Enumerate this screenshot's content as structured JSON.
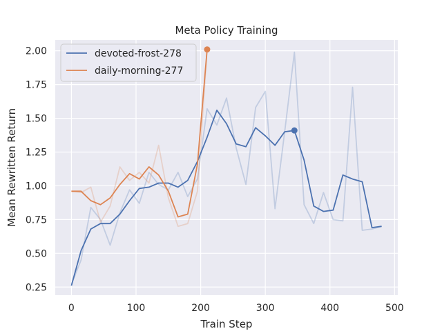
{
  "chart_data": {
    "type": "line",
    "title": "Meta Policy Training",
    "xlabel": "Train Step",
    "ylabel": "Mean Rewritten Return",
    "xlim": [
      -25,
      505
    ],
    "ylim": [
      0.19,
      2.08
    ],
    "xticks": [
      0,
      100,
      200,
      300,
      400,
      500
    ],
    "yticks": [
      0.25,
      0.5,
      0.75,
      1.0,
      1.25,
      1.5,
      1.75,
      2.0
    ],
    "xtick_labels": [
      "0",
      "100",
      "200",
      "300",
      "400",
      "500"
    ],
    "ytick_labels": [
      "0.25",
      "0.50",
      "0.75",
      "1.00",
      "1.25",
      "1.50",
      "1.75",
      "2.00"
    ],
    "grid": true,
    "legend_position": "top-left",
    "series": [
      {
        "name": "devoted-frost-278",
        "color": "#4c72b0",
        "x": [
          0,
          15,
          30,
          45,
          60,
          75,
          90,
          105,
          120,
          135,
          150,
          165,
          180,
          195,
          210,
          225,
          240,
          255,
          270,
          285,
          300,
          315,
          330,
          345,
          360,
          375,
          390,
          405,
          420,
          435,
          450,
          465,
          480
        ],
        "raw": [
          0.27,
          0.45,
          0.84,
          0.75,
          0.56,
          0.8,
          0.97,
          0.87,
          1.1,
          1.01,
          0.97,
          1.1,
          0.92,
          1.05,
          1.57,
          1.45,
          1.65,
          1.28,
          1.01,
          1.58,
          1.7,
          0.83,
          1.4,
          1.99,
          0.86,
          0.72,
          0.95,
          0.75,
          0.74,
          1.73,
          0.67,
          0.68,
          0.7
        ],
        "smoothed": [
          0.26,
          0.52,
          0.68,
          0.72,
          0.72,
          0.79,
          0.89,
          0.98,
          0.99,
          1.02,
          1.02,
          0.99,
          1.04,
          1.18,
          1.36,
          1.56,
          1.46,
          1.31,
          1.29,
          1.43,
          1.37,
          1.3,
          1.4,
          1.41,
          1.19,
          0.85,
          0.81,
          0.82,
          1.08,
          1.05,
          1.03,
          0.69,
          0.7
        ],
        "end_marker": {
          "x": 345,
          "y": 1.41
        }
      },
      {
        "name": "daily-morning-277",
        "color": "#dd8452",
        "x": [
          0,
          15,
          30,
          45,
          60,
          75,
          90,
          105,
          120,
          135,
          150,
          165,
          180,
          195,
          210
        ],
        "raw": [
          0.96,
          0.95,
          0.99,
          0.73,
          0.85,
          1.14,
          1.04,
          1.1,
          1.02,
          1.3,
          0.91,
          0.7,
          0.72,
          0.96,
          2.01
        ],
        "smoothed": [
          0.96,
          0.96,
          0.89,
          0.86,
          0.91,
          1.01,
          1.09,
          1.05,
          1.14,
          1.08,
          0.96,
          0.77,
          0.79,
          1.16,
          2.01
        ],
        "end_marker": {
          "x": 210,
          "y": 2.01
        }
      }
    ]
  }
}
